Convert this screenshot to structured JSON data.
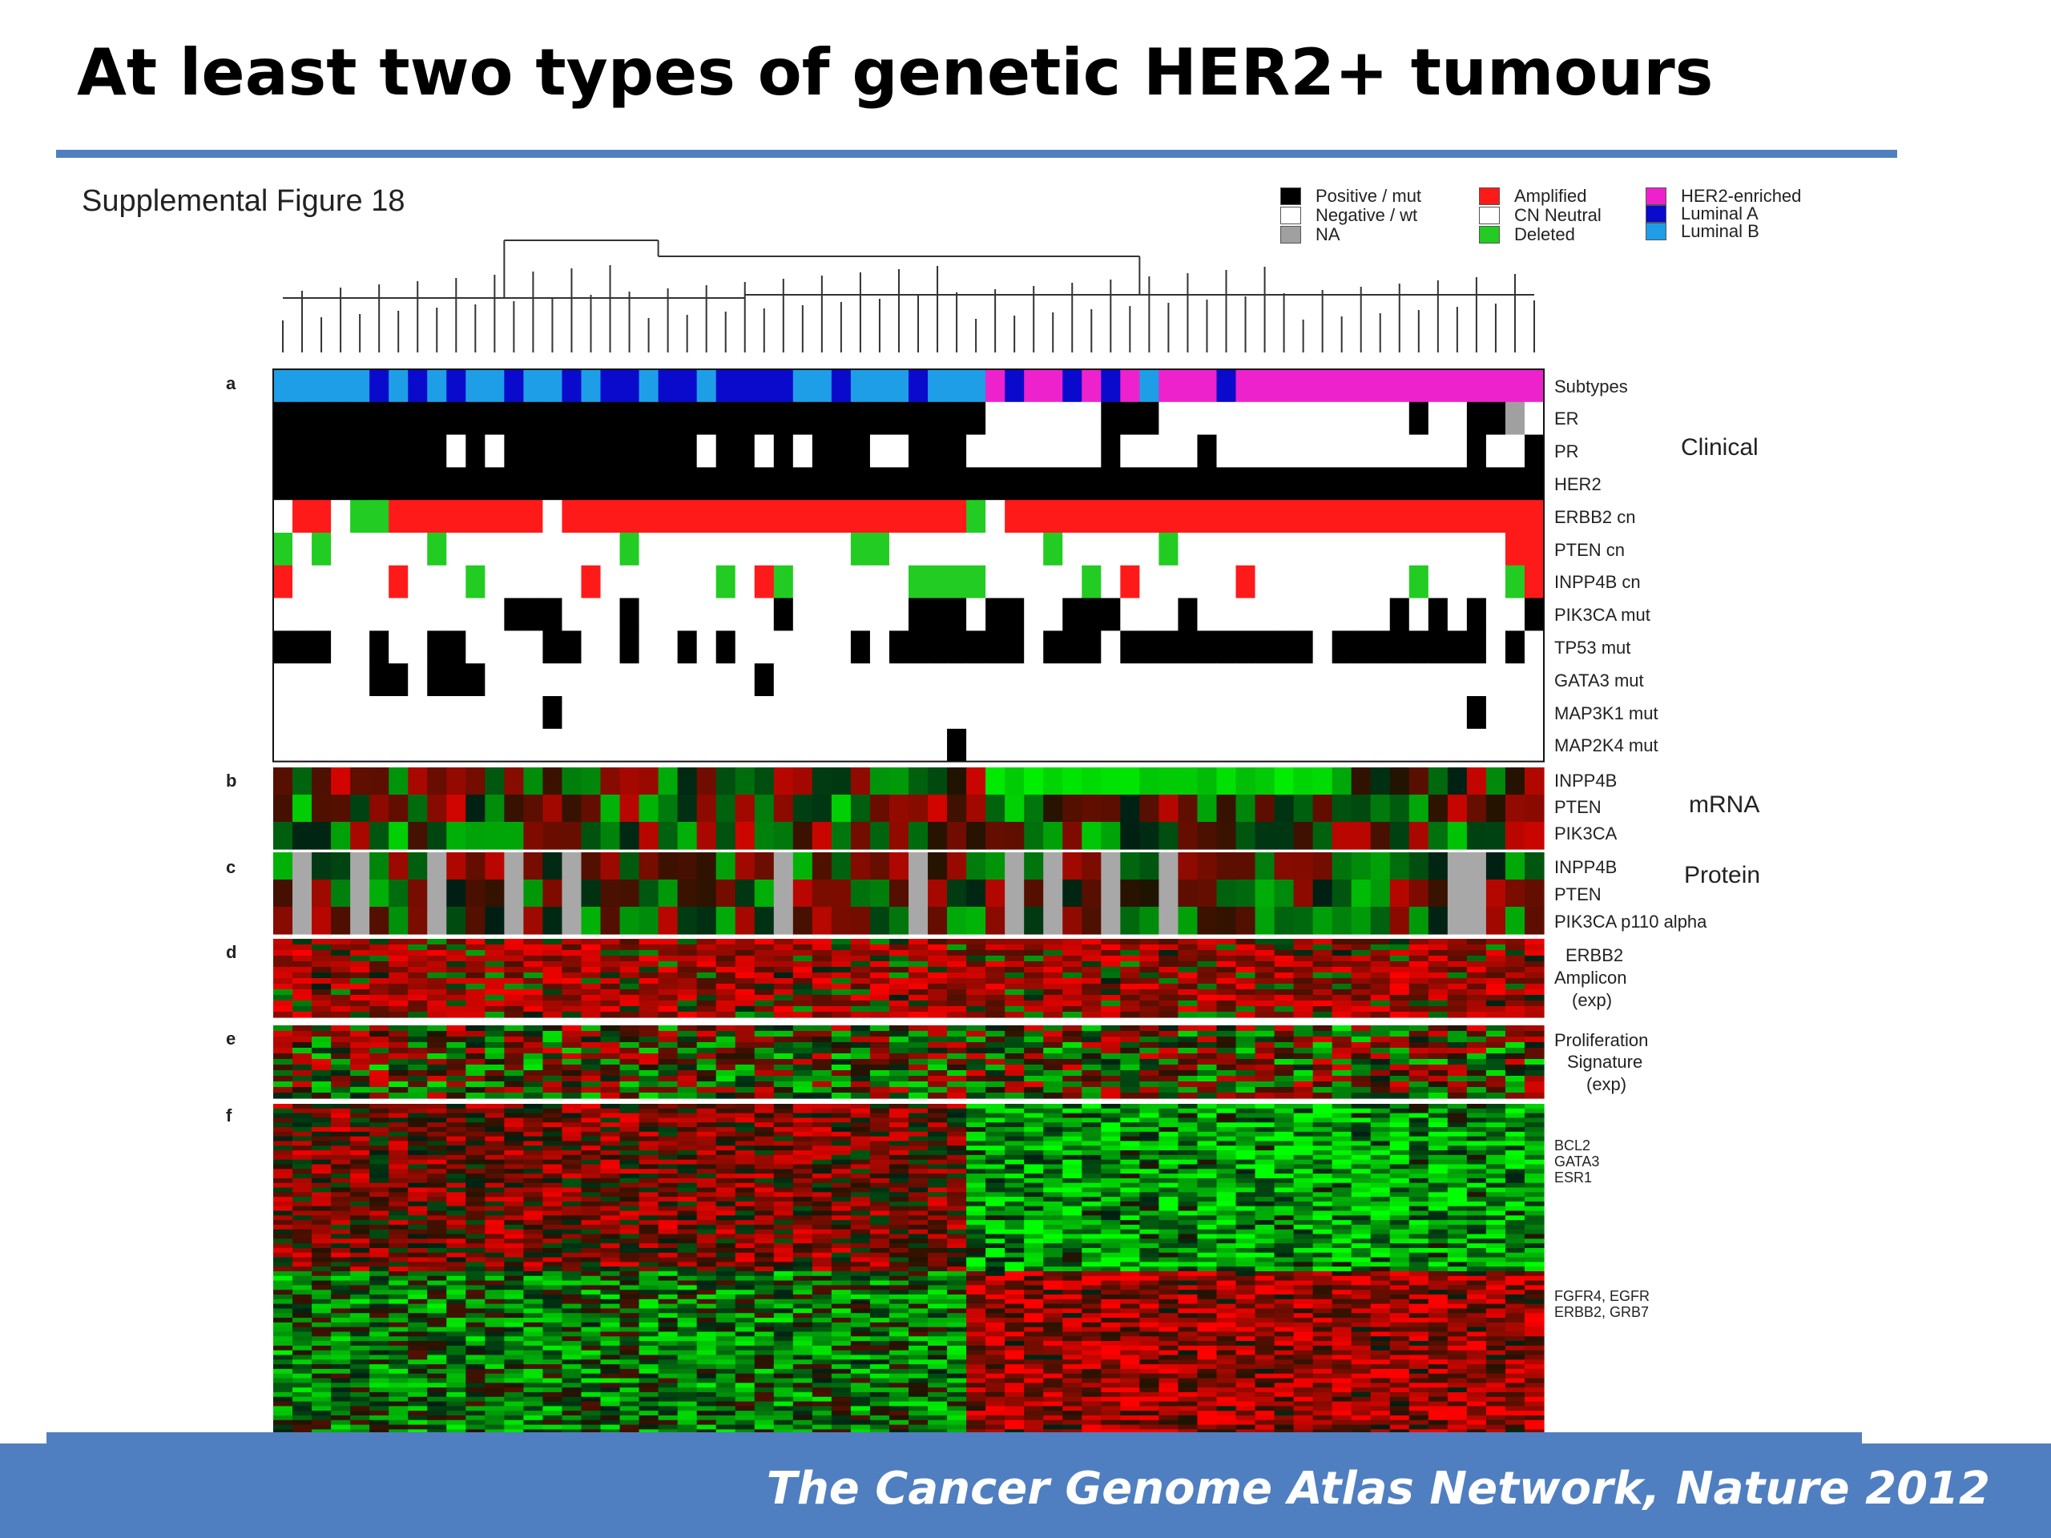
{
  "slide": {
    "title": "At least two types of genetic HER2+ tumours",
    "citation": "The Cancer Genome Atlas Network, Nature 2012"
  },
  "chart_data": {
    "type": "heatmap",
    "title": "Supplemental Figure 18",
    "legend": [
      {
        "label": "Positive / mut",
        "color": "#000000"
      },
      {
        "label": "Negative / wt",
        "color": "#ffffff"
      },
      {
        "label": "NA",
        "color": "#a0a0a0"
      },
      {
        "label": "Amplified",
        "color": "#ff1a1a"
      },
      {
        "label": "CN Neutral",
        "color": "#ffffff"
      },
      {
        "label": "Deleted",
        "color": "#22cc22"
      },
      {
        "label": "HER2-enriched",
        "color": "#ee22cc"
      },
      {
        "label": "Luminal A",
        "color": "#0a0acc"
      },
      {
        "label": "Luminal B",
        "color": "#1e9ee6"
      }
    ],
    "panel_letters": [
      "a",
      "b",
      "c",
      "d",
      "e",
      "f"
    ],
    "panel_a_rows": [
      "Subtypes",
      "ER",
      "PR",
      "HER2",
      "ERBB2 cn",
      "PTEN cn",
      "INPP4B cn",
      "PIK3CA mut",
      "TP53 mut",
      "GATA3 mut",
      "MAP3K1 mut",
      "MAP2K4 mut"
    ],
    "panel_a_group": "Clinical",
    "panel_b_rows": [
      "INPP4B",
      "PTEN",
      "PIK3CA"
    ],
    "panel_b_group": "mRNA",
    "panel_c_rows": [
      "INPP4B",
      "PTEN",
      "PIK3CA p110 alpha"
    ],
    "panel_c_group": "Protein",
    "panel_d_label": [
      "ERBB2",
      "Amplicon",
      "(exp)"
    ],
    "panel_e_label": [
      "Proliferation",
      "Signature",
      "(exp)"
    ],
    "panel_f_genes_top": "BCL2\nGATA3\nESR1",
    "panel_f_genes_bottom": "FGFR4, EGFR\nERBB2, GRB7",
    "samples": 66,
    "subtypes": [
      "B",
      "B",
      "B",
      "B",
      "B",
      "A",
      "B",
      "A",
      "B",
      "A",
      "B",
      "B",
      "A",
      "B",
      "B",
      "A",
      "B",
      "A",
      "A",
      "B",
      "A",
      "A",
      "B",
      "A",
      "A",
      "A",
      "A",
      "B",
      "B",
      "A",
      "B",
      "B",
      "B",
      "A",
      "B",
      "B",
      "B",
      "H",
      "A",
      "H",
      "H",
      "A",
      "H",
      "A",
      "H",
      "B",
      "H",
      "H",
      "H",
      "A",
      "H",
      "H",
      "H",
      "H",
      "H",
      "H",
      "H",
      "H",
      "H",
      "H",
      "H",
      "H",
      "H",
      "H",
      "H",
      "H"
    ],
    "ER": [
      1,
      1,
      1,
      1,
      1,
      1,
      1,
      1,
      1,
      1,
      1,
      1,
      1,
      1,
      1,
      1,
      1,
      1,
      1,
      1,
      1,
      1,
      1,
      1,
      1,
      1,
      1,
      1,
      1,
      1,
      1,
      1,
      1,
      1,
      1,
      1,
      1,
      0,
      0,
      0,
      0,
      0,
      0,
      1,
      1,
      1,
      0,
      0,
      0,
      0,
      0,
      0,
      0,
      0,
      0,
      0,
      0,
      0,
      0,
      1,
      0,
      0,
      1,
      1,
      2,
      0
    ],
    "PR": [
      1,
      1,
      1,
      1,
      1,
      1,
      1,
      1,
      1,
      0,
      1,
      0,
      1,
      1,
      1,
      1,
      1,
      1,
      1,
      1,
      1,
      1,
      0,
      1,
      1,
      0,
      1,
      0,
      1,
      1,
      1,
      0,
      0,
      1,
      1,
      1,
      0,
      0,
      0,
      0,
      0,
      0,
      0,
      1,
      0,
      0,
      0,
      0,
      1,
      0,
      0,
      0,
      0,
      0,
      0,
      0,
      0,
      0,
      0,
      0,
      0,
      0,
      1,
      0,
      0,
      1
    ],
    "HER2": [
      1,
      1,
      1,
      1,
      1,
      1,
      1,
      1,
      1,
      1,
      1,
      1,
      1,
      1,
      1,
      1,
      1,
      1,
      1,
      1,
      1,
      1,
      1,
      1,
      1,
      1,
      1,
      1,
      1,
      1,
      1,
      1,
      1,
      1,
      1,
      1,
      1,
      1,
      1,
      1,
      1,
      1,
      1,
      1,
      1,
      1,
      1,
      1,
      1,
      1,
      1,
      1,
      1,
      1,
      1,
      1,
      1,
      1,
      1,
      1,
      1,
      1,
      1,
      1,
      1,
      1
    ],
    "ERBB2_cn": [
      0,
      1,
      1,
      0,
      -1,
      -1,
      1,
      1,
      1,
      1,
      1,
      1,
      1,
      1,
      0,
      1,
      1,
      1,
      1,
      1,
      1,
      1,
      1,
      1,
      1,
      1,
      1,
      1,
      1,
      1,
      1,
      1,
      1,
      1,
      1,
      1,
      -1,
      0,
      1,
      1,
      1,
      1,
      1,
      1,
      1,
      1,
      1,
      1,
      1,
      1,
      1,
      1,
      1,
      1,
      1,
      1,
      1,
      1,
      1,
      1,
      1,
      1,
      1,
      1,
      1,
      1
    ],
    "PTEN_cn": [
      -1,
      0,
      -1,
      0,
      0,
      0,
      0,
      0,
      -1,
      0,
      0,
      0,
      0,
      0,
      0,
      0,
      0,
      0,
      -1,
      0,
      0,
      0,
      0,
      0,
      0,
      0,
      0,
      0,
      0,
      0,
      -1,
      -1,
      0,
      0,
      0,
      0,
      0,
      0,
      0,
      0,
      -1,
      0,
      0,
      0,
      0,
      0,
      -1,
      0,
      0,
      0,
      0,
      0,
      0,
      0,
      0,
      0,
      0,
      0,
      0,
      0,
      0,
      0,
      0,
      0,
      1,
      1
    ],
    "INPP4B_cn": [
      1,
      0,
      0,
      0,
      0,
      0,
      1,
      0,
      0,
      0,
      -1,
      0,
      0,
      0,
      0,
      0,
      1,
      0,
      0,
      0,
      0,
      0,
      0,
      -1,
      0,
      1,
      -1,
      0,
      0,
      0,
      0,
      0,
      0,
      -1,
      -1,
      -1,
      -1,
      0,
      0,
      0,
      0,
      0,
      -1,
      0,
      1,
      0,
      0,
      0,
      0,
      0,
      1,
      0,
      0,
      0,
      0,
      0,
      0,
      0,
      0,
      -1,
      0,
      0,
      0,
      0,
      -1,
      1
    ],
    "PIK3CA_mut": [
      0,
      0,
      0,
      0,
      0,
      0,
      0,
      0,
      0,
      0,
      0,
      0,
      1,
      1,
      1,
      0,
      0,
      0,
      1,
      0,
      0,
      0,
      0,
      0,
      0,
      0,
      1,
      0,
      0,
      0,
      0,
      0,
      0,
      1,
      1,
      1,
      0,
      1,
      1,
      0,
      0,
      1,
      1,
      1,
      0,
      0,
      0,
      1,
      0,
      0,
      0,
      0,
      0,
      0,
      0,
      0,
      0,
      0,
      1,
      0,
      1,
      0,
      1,
      0,
      0,
      1
    ],
    "TP53_mut": [
      1,
      1,
      1,
      0,
      0,
      1,
      0,
      0,
      1,
      1,
      0,
      0,
      0,
      0,
      1,
      1,
      0,
      0,
      1,
      0,
      0,
      1,
      0,
      1,
      0,
      0,
      0,
      0,
      0,
      0,
      1,
      0,
      1,
      1,
      1,
      1,
      1,
      1,
      1,
      0,
      1,
      1,
      1,
      0,
      1,
      1,
      1,
      1,
      1,
      1,
      1,
      1,
      1,
      1,
      0,
      1,
      1,
      1,
      1,
      1,
      1,
      1,
      1,
      0,
      1,
      0
    ],
    "GATA3_mut": [
      0,
      0,
      0,
      0,
      0,
      1,
      1,
      0,
      1,
      1,
      1,
      0,
      0,
      0,
      0,
      0,
      0,
      0,
      0,
      0,
      0,
      0,
      0,
      0,
      0,
      1,
      0,
      0,
      0,
      0,
      0,
      0,
      0,
      0,
      0,
      0,
      0,
      0,
      0,
      0,
      0,
      0,
      0,
      0,
      0,
      0,
      0,
      0,
      0,
      0,
      0,
      0,
      0,
      0,
      0,
      0,
      0,
      0,
      0,
      0,
      0,
      0,
      0,
      0,
      0,
      0
    ],
    "MAP3K1_mut": [
      0,
      0,
      0,
      0,
      0,
      0,
      0,
      0,
      0,
      0,
      0,
      0,
      0,
      0,
      1,
      0,
      0,
      0,
      0,
      0,
      0,
      0,
      0,
      0,
      0,
      0,
      0,
      0,
      0,
      0,
      0,
      0,
      0,
      0,
      0,
      0,
      0,
      0,
      0,
      0,
      0,
      0,
      0,
      0,
      0,
      0,
      0,
      0,
      0,
      0,
      0,
      0,
      0,
      0,
      0,
      0,
      0,
      0,
      0,
      0,
      0,
      0,
      1,
      0,
      0,
      0
    ],
    "MAP2K4_mut": [
      0,
      0,
      0,
      0,
      0,
      0,
      0,
      0,
      0,
      0,
      0,
      0,
      0,
      0,
      0,
      0,
      0,
      0,
      0,
      0,
      0,
      0,
      0,
      0,
      0,
      0,
      0,
      0,
      0,
      0,
      0,
      0,
      0,
      0,
      0,
      1,
      0,
      0,
      0,
      0,
      0,
      0,
      0,
      0,
      0,
      0,
      0,
      0,
      0,
      0,
      0,
      0,
      0,
      0,
      0,
      0,
      0,
      0,
      0,
      0,
      0,
      0,
      0,
      0,
      0,
      0
    ],
    "protein_NA_columns": [
      1,
      4,
      8,
      12,
      15,
      26,
      33,
      38,
      40,
      43,
      46,
      61,
      62
    ]
  }
}
